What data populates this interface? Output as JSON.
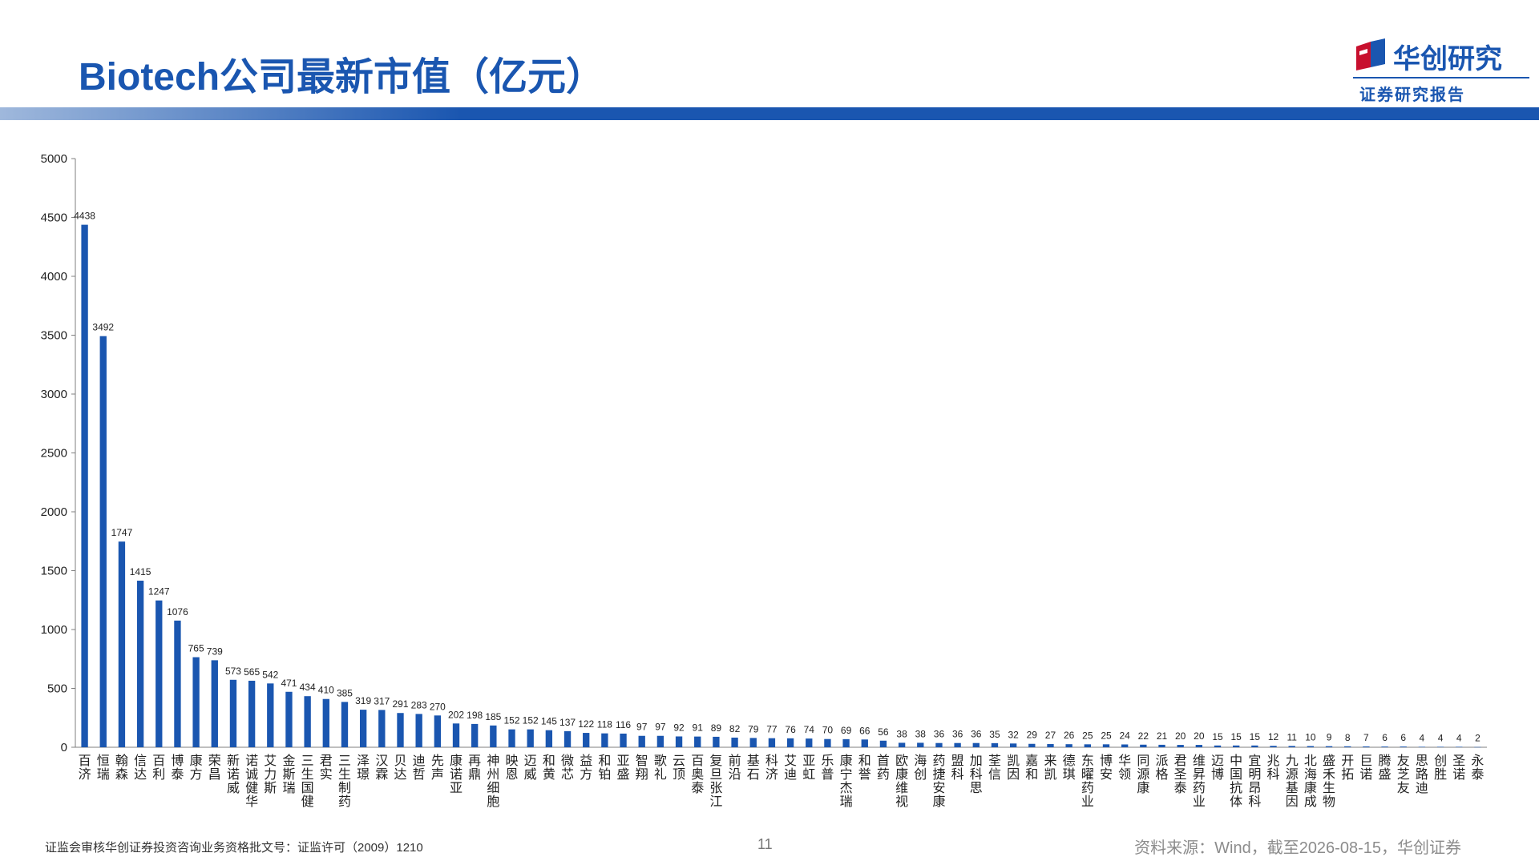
{
  "header": {
    "title": "Biotech公司最新市值（亿元）",
    "logo_text": "华创研究",
    "logo_subtitle": "证券研究报告"
  },
  "footer": {
    "license": "证监会审核华创证券投资咨询业务资格批文号：证监许可（2009）1210",
    "page_number": "11",
    "source": "资料来源：Wind，截至2026-08-15，华创证券"
  },
  "colors": {
    "bar": "#1a56b0",
    "title": "#1a56b0",
    "band_left": "#9fb8dc",
    "band_right": "#1a56b0"
  },
  "chart_data": {
    "type": "bar",
    "title": "",
    "xlabel": "",
    "ylabel": "",
    "ylim": [
      0,
      5000
    ],
    "yticks": [
      0,
      500,
      1000,
      1500,
      2000,
      2500,
      3000,
      3500,
      4000,
      4500,
      5000
    ],
    "grid": false,
    "legend": "none",
    "categories": [
      "百济",
      "恒瑞",
      "翰森",
      "信达",
      "百利",
      "博泰",
      "康方",
      "荣昌",
      "新诺威",
      "诺诚健华",
      "艾力斯",
      "金斯瑞",
      "三生国健",
      "君实",
      "三生制药",
      "泽璟",
      "汉霖",
      "贝达",
      "迪哲",
      "先声",
      "康诺亚",
      "再鼎",
      "神州细胞",
      "映恩",
      "迈威",
      "和黄",
      "微芯",
      "益方",
      "和铂",
      "亚盛",
      "智翔",
      "歌礼",
      "云顶",
      "百奥泰",
      "复旦张江",
      "前沿",
      "基石",
      "科济",
      "艾迪",
      "亚虹",
      "乐普",
      "康宁杰瑞",
      "和誉",
      "首药",
      "欧康维视",
      "海创",
      "药捷安康",
      "盟科",
      "加科思",
      "荃信",
      "凯因",
      "嘉和",
      "来凯",
      "德琪",
      "东曜药业",
      "博安",
      "华领",
      "同源康",
      "派格",
      "君圣泰",
      "维昇药业",
      "迈博",
      "中国抗体",
      "宜明昂科",
      "兆科",
      "九源基因",
      "北海康成",
      "盛禾生物",
      "开拓",
      "巨诺",
      "腾盛",
      "友芝友",
      "思路迪",
      "创胜",
      "圣诺",
      "永泰"
    ],
    "values": [
      4438,
      3492,
      1747,
      1415,
      1247,
      1076,
      765,
      739,
      573,
      565,
      542,
      471,
      434,
      410,
      385,
      319,
      317,
      291,
      283,
      270,
      202,
      198,
      185,
      152,
      152,
      145,
      137,
      122,
      118,
      116,
      97,
      97,
      92,
      91,
      89,
      82,
      79,
      77,
      76,
      74,
      70,
      69,
      66,
      56,
      38,
      38,
      36,
      36,
      36,
      35,
      32,
      29,
      27,
      26,
      25,
      25,
      24,
      22,
      21,
      20,
      20,
      15,
      15,
      15,
      12,
      11,
      10,
      9,
      8,
      7,
      6,
      6,
      4,
      4,
      4,
      2
    ]
  }
}
